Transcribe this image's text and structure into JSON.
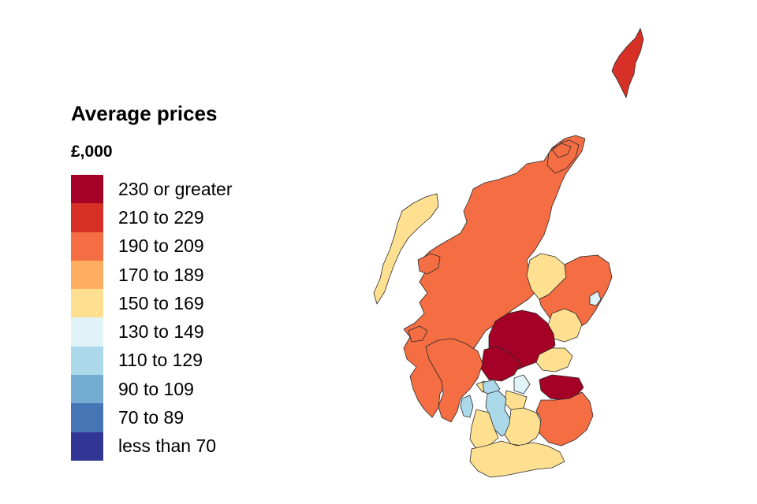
{
  "legend": {
    "title": "Average prices",
    "unit": "£,000",
    "items": [
      {
        "label": "230 or greater",
        "color": "#a50026"
      },
      {
        "label": "210 to 229",
        "color": "#d73027"
      },
      {
        "label": "190 to 209",
        "color": "#f46d43"
      },
      {
        "label": "170 to 189",
        "color": "#fdae61"
      },
      {
        "label": "150 to 169",
        "color": "#fee090"
      },
      {
        "label": "130 to 149",
        "color": "#e0f3f8"
      },
      {
        "label": "110 to 129",
        "color": "#abd9e9"
      },
      {
        "label": "90 to 109",
        "color": "#74add1"
      },
      {
        "label": "70 to 89",
        "color": "#4575b4"
      },
      {
        "label": "less than 70",
        "color": "#313695"
      }
    ]
  },
  "map": {
    "regions": [
      {
        "band": "190 to 209"
      },
      {
        "band": "210 to 229"
      },
      {
        "band": "190 to 209"
      },
      {
        "band": "150 to 169"
      },
      {
        "band": "190 to 209"
      },
      {
        "band": "150 to 169"
      },
      {
        "band": "130 to 149"
      },
      {
        "band": "150 to 169"
      },
      {
        "band": "230 or greater"
      },
      {
        "band": "150 to 169"
      },
      {
        "band": "230 or greater"
      },
      {
        "band": "190 to 209"
      },
      {
        "band": "150 to 169"
      },
      {
        "band": "110 to 129"
      },
      {
        "band": "110 to 129"
      },
      {
        "band": "130 to 149"
      },
      {
        "band": "230 or greater"
      },
      {
        "band": "150 to 169"
      },
      {
        "band": "110 to 129"
      },
      {
        "band": "150 to 169"
      },
      {
        "band": "190 to 209"
      },
      {
        "band": "190 to 209"
      },
      {
        "band": "150 to 169"
      },
      {
        "band": "150 to 169"
      },
      {
        "band": "190 to 209"
      },
      {
        "band": "190 to 209"
      }
    ]
  }
}
